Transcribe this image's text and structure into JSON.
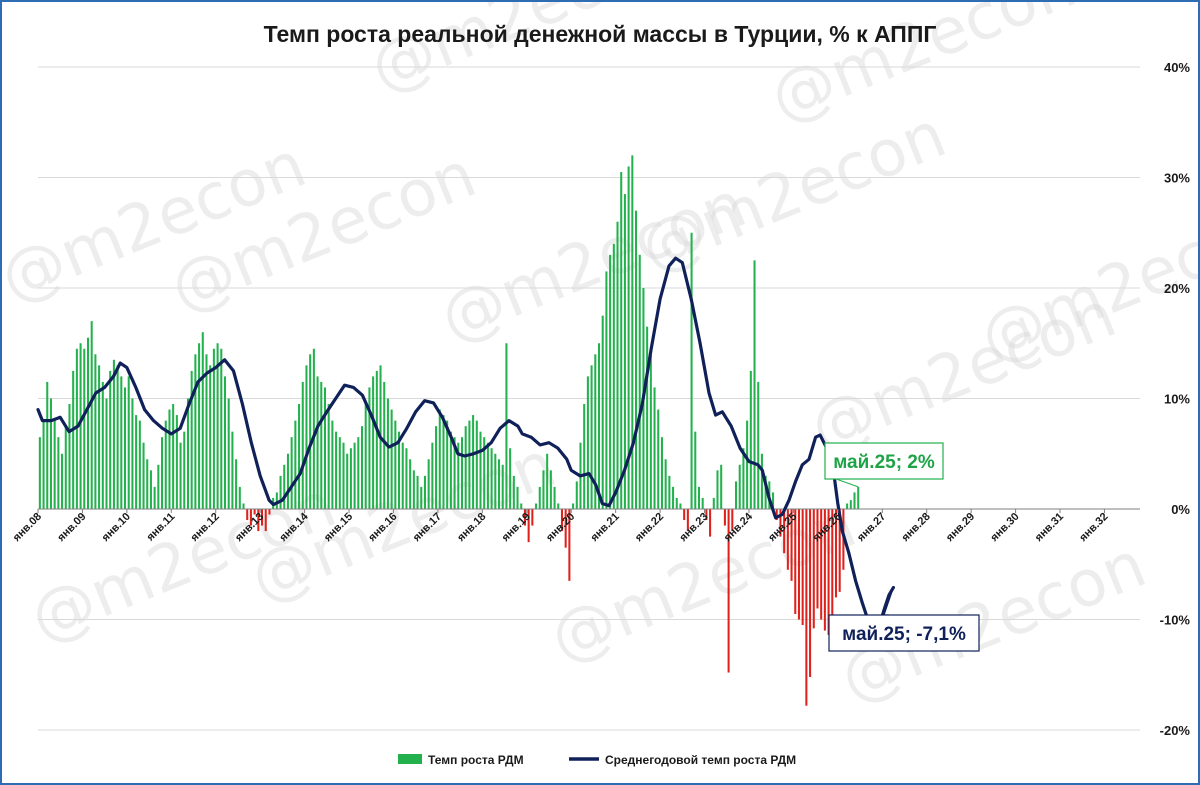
{
  "chart_data": {
    "type": "bar",
    "title": "Темп роста реальной денежной массы в Турции, % к АППГ",
    "xlabel": "",
    "ylabel": "",
    "ylim": [
      -20,
      40
    ],
    "y_ticks": [
      "-20%",
      "-10%",
      "0%",
      "10%",
      "20%",
      "30%",
      "40%"
    ],
    "x_ticks": [
      "янв.08",
      "янв.09",
      "янв.10",
      "янв.11",
      "янв.12",
      "янв.13",
      "янв.14",
      "янв.15",
      "янв.16",
      "янв.17",
      "янв.18",
      "янв.19",
      "янв.20",
      "янв.21",
      "янв.22",
      "янв.23",
      "янв.24",
      "янв.25",
      "янв.26",
      "янв.27",
      "янв.28",
      "янв.29",
      "янв.30",
      "янв.31",
      "янв.32"
    ],
    "x_range_years": [
      2008,
      2032.8
    ],
    "grid": true,
    "legend_position": "bottom",
    "colors": {
      "positive_bar": "#22b14c",
      "negative_bar": "#e0201b",
      "line": "#10215a",
      "grid": "#d9d9d9"
    },
    "series": [
      {
        "name": "Темп роста РДМ",
        "type": "bar",
        "start_year": 2008,
        "start_month": 1,
        "values": [
          6.5,
          8.0,
          11.5,
          10.0,
          8.0,
          6.5,
          5.0,
          7.5,
          9.5,
          12.5,
          14.5,
          15.0,
          14.5,
          15.5,
          17.0,
          14.0,
          13.0,
          11.5,
          10.0,
          12.5,
          13.5,
          13.0,
          12.0,
          11.0,
          12.0,
          10.0,
          8.5,
          8.0,
          6.0,
          4.5,
          3.5,
          2.0,
          4.0,
          6.5,
          8.0,
          9.0,
          9.5,
          8.5,
          6.0,
          7.0,
          10.0,
          12.5,
          14.0,
          15.0,
          16.0,
          14.0,
          13.0,
          14.5,
          15.0,
          14.5,
          12.0,
          10.0,
          7.0,
          4.5,
          2.0,
          0.5,
          -1.0,
          -1.5,
          -0.5,
          -2.0,
          -1.5,
          -2.0,
          -0.5,
          1.0,
          1.5,
          3.0,
          4.0,
          5.0,
          6.5,
          8.0,
          9.5,
          11.5,
          13.0,
          14.0,
          14.5,
          12.0,
          11.5,
          11.0,
          9.5,
          8.0,
          7.0,
          6.5,
          6.0,
          5.0,
          5.5,
          6.0,
          6.5,
          7.5,
          9.5,
          11.0,
          12.0,
          12.5,
          13.0,
          11.5,
          10.0,
          9.0,
          8.0,
          7.0,
          6.0,
          5.5,
          4.5,
          3.5,
          3.0,
          2.0,
          3.0,
          4.5,
          6.0,
          7.5,
          9.0,
          8.5,
          8.0,
          7.0,
          6.5,
          6.0,
          6.5,
          7.5,
          8.0,
          8.5,
          8.0,
          7.0,
          6.5,
          6.0,
          5.5,
          5.0,
          4.5,
          4.0,
          15.0,
          5.5,
          3.0,
          2.0,
          0.5,
          -1.5,
          -3.0,
          -1.5,
          0.5,
          2.0,
          3.5,
          5.0,
          3.5,
          2.0,
          0.5,
          -2.0,
          -3.5,
          -6.5,
          0.5,
          2.5,
          6.0,
          9.5,
          12.0,
          13.0,
          14.0,
          15.0,
          17.5,
          21.5,
          23.0,
          24.0,
          26.0,
          30.5,
          28.5,
          31.0,
          32.0,
          27.0,
          23.0,
          20.0,
          16.5,
          14.0,
          11.0,
          9.0,
          6.5,
          4.5,
          3.0,
          2.0,
          1.0,
          0.5,
          -1.0,
          -2.0,
          25.0,
          7.0,
          2.0,
          1.0,
          -1.0,
          -2.5,
          1.0,
          3.5,
          4.0,
          -1.5,
          -14.8,
          -2.0,
          2.5,
          4.0,
          5.5,
          8.0,
          12.5,
          22.5,
          11.5,
          5.0,
          3.0,
          2.5,
          1.5,
          -1.0,
          -2.5,
          -4.0,
          -5.5,
          -6.5,
          -9.5,
          -10.0,
          -10.5,
          -17.8,
          -15.2,
          -10.8,
          -9.0,
          -10.0,
          -11.0,
          -11.4,
          -10.8,
          -8.0,
          -7.5,
          -5.5,
          0.5,
          0.8,
          1.5,
          2.0
        ]
      },
      {
        "name": "Среднегодовой темп роста РДМ",
        "type": "line",
        "points": [
          [
            2008.0,
            9.0
          ],
          [
            2008.1,
            8.0
          ],
          [
            2008.3,
            8.0
          ],
          [
            2008.5,
            8.3
          ],
          [
            2008.7,
            7.0
          ],
          [
            2008.9,
            7.5
          ],
          [
            2009.1,
            9.0
          ],
          [
            2009.3,
            10.5
          ],
          [
            2009.5,
            11.0
          ],
          [
            2009.7,
            12.0
          ],
          [
            2009.85,
            13.2
          ],
          [
            2010.0,
            12.8
          ],
          [
            2010.2,
            11.0
          ],
          [
            2010.4,
            9.0
          ],
          [
            2010.6,
            8.0
          ],
          [
            2010.8,
            7.3
          ],
          [
            2011.0,
            6.8
          ],
          [
            2011.2,
            7.3
          ],
          [
            2011.4,
            9.5
          ],
          [
            2011.6,
            11.5
          ],
          [
            2011.8,
            12.3
          ],
          [
            2012.0,
            12.8
          ],
          [
            2012.2,
            13.5
          ],
          [
            2012.4,
            12.5
          ],
          [
            2012.6,
            9.5
          ],
          [
            2012.8,
            6.0
          ],
          [
            2013.0,
            3.0
          ],
          [
            2013.2,
            0.8
          ],
          [
            2013.3,
            0.4
          ],
          [
            2013.5,
            0.8
          ],
          [
            2013.7,
            2.0
          ],
          [
            2013.9,
            3.2
          ],
          [
            2014.1,
            5.5
          ],
          [
            2014.3,
            7.5
          ],
          [
            2014.5,
            8.8
          ],
          [
            2014.7,
            10.0
          ],
          [
            2014.9,
            11.2
          ],
          [
            2015.1,
            11.0
          ],
          [
            2015.3,
            10.3
          ],
          [
            2015.5,
            8.5
          ],
          [
            2015.7,
            6.5
          ],
          [
            2015.9,
            5.6
          ],
          [
            2016.1,
            6.0
          ],
          [
            2016.3,
            7.3
          ],
          [
            2016.5,
            8.8
          ],
          [
            2016.7,
            9.8
          ],
          [
            2016.9,
            9.6
          ],
          [
            2017.1,
            8.3
          ],
          [
            2017.3,
            6.5
          ],
          [
            2017.45,
            5.0
          ],
          [
            2017.6,
            4.8
          ],
          [
            2017.8,
            5.0
          ],
          [
            2018.0,
            5.3
          ],
          [
            2018.2,
            6.0
          ],
          [
            2018.4,
            7.3
          ],
          [
            2018.6,
            8.0
          ],
          [
            2018.8,
            7.5
          ],
          [
            2018.9,
            6.8
          ],
          [
            2019.1,
            6.5
          ],
          [
            2019.3,
            5.8
          ],
          [
            2019.5,
            6.0
          ],
          [
            2019.7,
            5.5
          ],
          [
            2019.9,
            4.5
          ],
          [
            2020.0,
            3.5
          ],
          [
            2020.2,
            3.0
          ],
          [
            2020.4,
            3.2
          ],
          [
            2020.55,
            2.2
          ],
          [
            2020.7,
            0.5
          ],
          [
            2020.85,
            0.3
          ],
          [
            2021.0,
            1.5
          ],
          [
            2021.2,
            3.5
          ],
          [
            2021.4,
            6.0
          ],
          [
            2021.6,
            9.5
          ],
          [
            2021.8,
            14.5
          ],
          [
            2022.0,
            19.0
          ],
          [
            2022.2,
            22.0
          ],
          [
            2022.35,
            22.7
          ],
          [
            2022.5,
            22.3
          ],
          [
            2022.7,
            19.0
          ],
          [
            2022.9,
            15.0
          ],
          [
            2023.1,
            10.5
          ],
          [
            2023.25,
            8.5
          ],
          [
            2023.4,
            8.8
          ],
          [
            2023.6,
            7.5
          ],
          [
            2023.8,
            5.5
          ],
          [
            2024.0,
            4.3
          ],
          [
            2024.2,
            4.0
          ],
          [
            2024.3,
            3.5
          ],
          [
            2024.45,
            1.0
          ],
          [
            2024.6,
            -0.8
          ],
          [
            2024.75,
            -0.5
          ],
          [
            2024.9,
            0.8
          ],
          [
            2025.05,
            2.5
          ],
          [
            2025.2,
            4.0
          ],
          [
            2025.35,
            4.5
          ],
          [
            2025.5,
            6.5
          ],
          [
            2025.6,
            6.7
          ],
          [
            2025.75,
            5.5
          ],
          [
            2025.9,
            3.5
          ],
          [
            2026.0,
            0.5
          ],
          [
            2026.1,
            -2.0
          ],
          [
            2026.25,
            -4.0
          ],
          [
            2026.4,
            -6.5
          ],
          [
            2026.55,
            -8.5
          ],
          [
            2026.7,
            -10.3
          ],
          [
            2026.85,
            -11.0
          ],
          [
            2026.95,
            -10.3
          ],
          [
            2027.05,
            -9.0
          ],
          [
            2027.15,
            -7.8
          ],
          [
            2027.25,
            -7.1
          ]
        ]
      }
    ],
    "annotations": [
      {
        "text": "май.25; 2%",
        "x": 2025.33,
        "y": 2.0,
        "style": "green"
      },
      {
        "text": "май.25; -7,1%",
        "x": 2025.33,
        "y": -7.1,
        "style": "navy"
      }
    ],
    "watermark": "@m2econ"
  }
}
